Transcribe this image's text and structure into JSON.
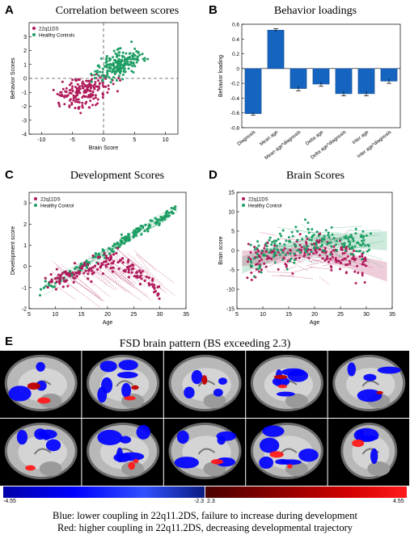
{
  "panels": {
    "A": {
      "letter": "A",
      "title": "Correlation between scores"
    },
    "B": {
      "letter": "B",
      "title": "Behavior loadings"
    },
    "C": {
      "letter": "C",
      "title": "Development Scores"
    },
    "D": {
      "letter": "D",
      "title": "Brain Scores"
    },
    "E": {
      "letter": "E",
      "title": "FSD brain pattern (BS exceeding 2.3)"
    }
  },
  "colors": {
    "ds": "#b01c5c",
    "hc": "#1e9e64",
    "bar": "#1565c0",
    "neg": "#0000ff",
    "pos": "#ff1a1a"
  },
  "chart_data": [
    {
      "type": "scatter",
      "title": "Correlation between scores",
      "xlabel": "Brain Score",
      "ylabel": "Behavior Scores",
      "xlim": [
        -12,
        12
      ],
      "ylim": [
        -4,
        4
      ],
      "xticks": [
        "-10",
        "-5",
        "0",
        "5",
        "10"
      ],
      "yticks": [
        "-4",
        "-3",
        "-2",
        "-1",
        "0",
        "1",
        "2",
        "3"
      ],
      "legend": [
        "22q11DS",
        "Healthy Controls"
      ],
      "legend_position": "top-left",
      "reference_lines": {
        "x": 0,
        "y": 0
      }
    },
    {
      "type": "bar",
      "title": "Behavior loadings",
      "ylabel": "Behavior loading",
      "categories": [
        "Diagnosis",
        "Mean age",
        "Mean age*diagnosis",
        "Delta age",
        "Delta age*diagnosis",
        "Inter age",
        "Inter age*diagnosis"
      ],
      "values": [
        -0.61,
        0.52,
        -0.27,
        -0.21,
        -0.34,
        -0.34,
        -0.17
      ],
      "errors": [
        0.02,
        0.02,
        0.03,
        0.03,
        0.03,
        0.03,
        0.03
      ],
      "ylim": [
        -0.8,
        0.6
      ],
      "yticks": [
        "-0.8",
        "-0.6",
        "-0.4",
        "-0.2",
        "0",
        "0.2",
        "0.4",
        "0.6"
      ]
    },
    {
      "type": "scatter",
      "title": "Development Scores",
      "xlabel": "Age",
      "ylabel": "Development score",
      "xlim": [
        5,
        35
      ],
      "ylim": [
        -2,
        3.5
      ],
      "xticks": [
        "5",
        "10",
        "15",
        "20",
        "25",
        "30",
        "35"
      ],
      "yticks": [
        "-2",
        "-1",
        "0",
        "1",
        "2",
        "3"
      ],
      "legend": [
        "22q11DS",
        "Healthy Control"
      ],
      "legend_position": "top-left"
    },
    {
      "type": "scatter",
      "title": "Brain Scores",
      "xlabel": "Age",
      "ylabel": "Brain score",
      "xlim": [
        5,
        35
      ],
      "ylim": [
        -15,
        15
      ],
      "xticks": [
        "5",
        "10",
        "15",
        "20",
        "25",
        "30",
        "35"
      ],
      "yticks": [
        "-15",
        "-10",
        "-5",
        "0",
        "5",
        "10",
        "15"
      ],
      "legend": [
        "22q11DS",
        "Healthy Control"
      ],
      "legend_position": "top-left"
    }
  ],
  "colorbar": {
    "min_neg": "-4.55",
    "max_neg": "-2.3",
    "min_pos": "2.3",
    "max_pos": "4.55"
  },
  "caption": {
    "blue": "Blue: lower coupling in 22q11.2DS, failure to increase during development",
    "red": "Red: higher coupling in 22q11.2DS, decreasing developmental trajectory"
  }
}
